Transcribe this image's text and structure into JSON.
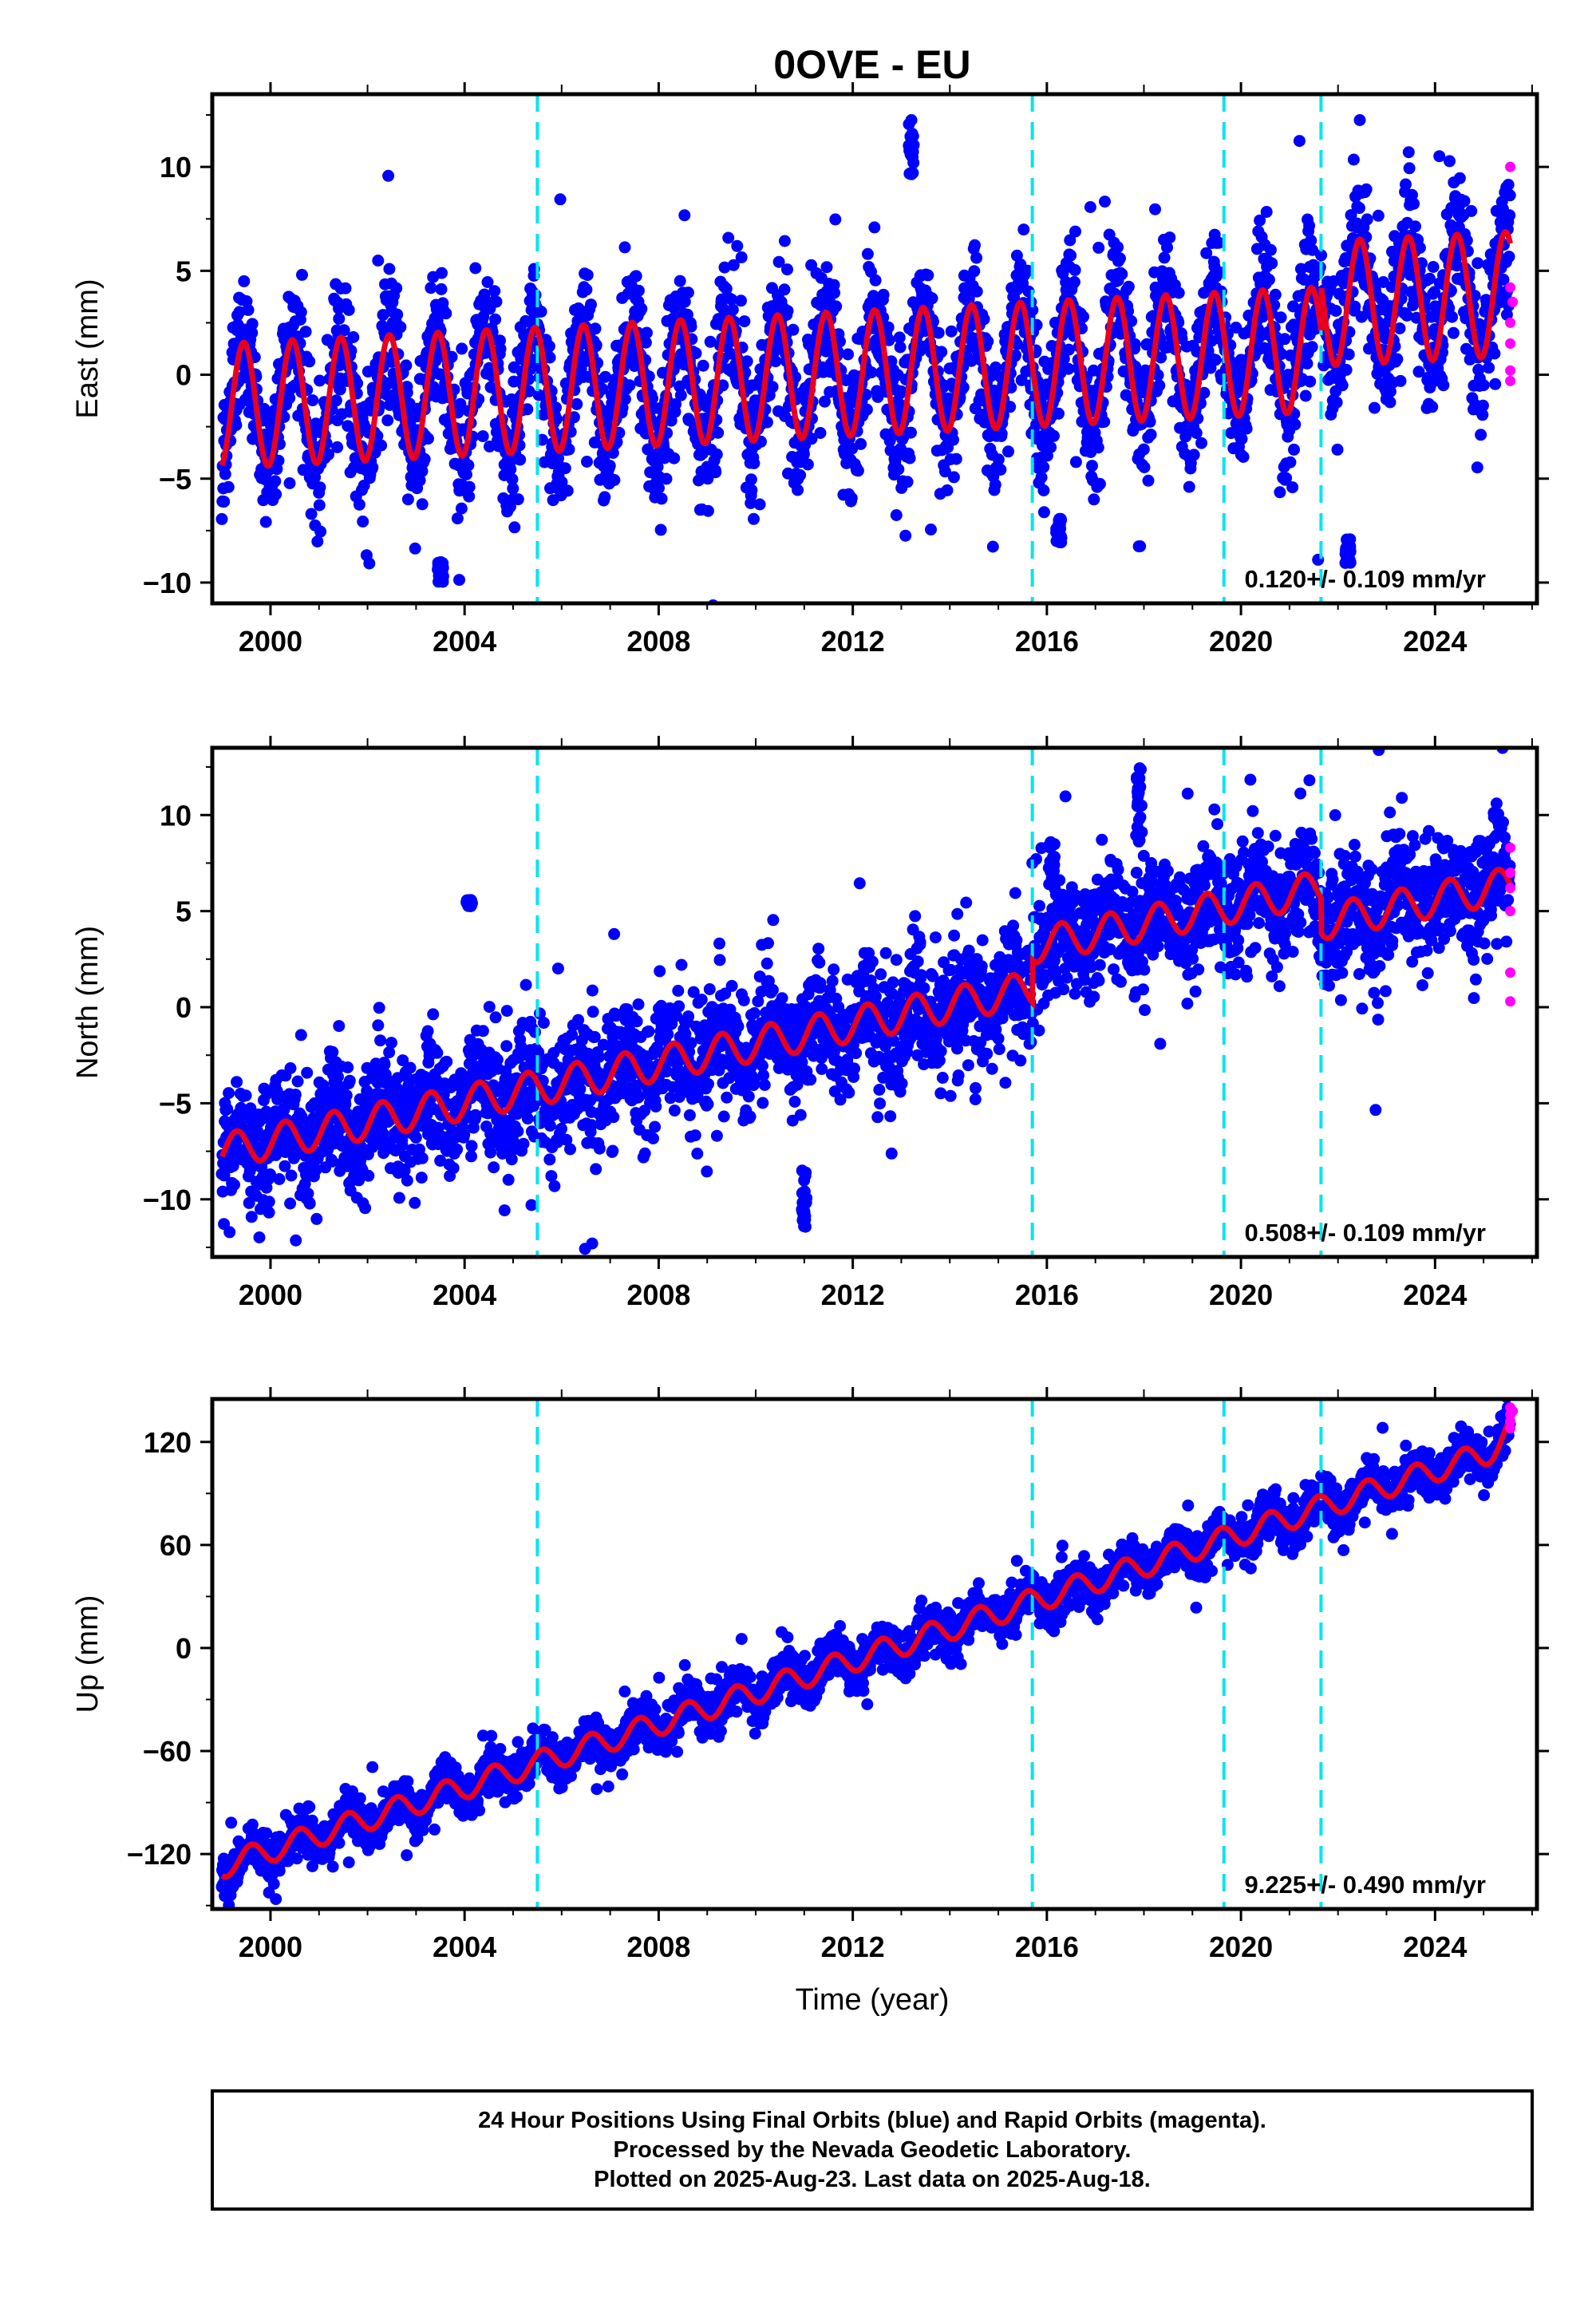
{
  "chart_data": {
    "type": "scatter",
    "title": "0OVE - EU",
    "xlabel": "Time (year)",
    "xlim": [
      1998.8,
      2026.1
    ],
    "xticks": [
      2000,
      2004,
      2008,
      2012,
      2016,
      2020,
      2024
    ],
    "x_tick_labels": [
      "2000",
      "2004",
      "2008",
      "2012",
      "2016",
      "2020",
      "2024"
    ],
    "equipment_change_epochs": [
      2005.5,
      2015.7,
      2019.65,
      2021.65
    ],
    "colors": {
      "final_orbits": "#0000ff",
      "rapid_orbits": "#ff00ff",
      "model_fit": "#e8001e",
      "steps": "#00e5ee"
    },
    "panels": [
      {
        "ylabel": "East (mm)",
        "ylim": [
          -11,
          13.5
        ],
        "yticks": [
          -10,
          -5,
          0,
          5,
          10
        ],
        "y_tick_labels": [
          "−10",
          "−5",
          "0",
          "5",
          "10"
        ],
        "rate_label": "0.120+/- 0.109 mm/yr",
        "model": {
          "t0": 1999.0,
          "offset": -1.5,
          "rate": 0.12,
          "annual_amplitude": 3.0,
          "annual_amplitude_from_2022": 3.0,
          "annual_phase_peak": 0.45,
          "steps": [
            {
              "t": 2021.65,
              "dy": 2.2
            }
          ]
        },
        "scatter_sigma": 1.6,
        "rapid_points": [
          [
            2025.55,
            10.0
          ],
          [
            2025.55,
            4.2
          ],
          [
            2025.55,
            2.5
          ],
          [
            2025.55,
            1.5
          ],
          [
            2025.55,
            0.2
          ],
          [
            2025.55,
            -0.3
          ],
          [
            2025.6,
            3.5
          ]
        ],
        "outlier_clusters": [
          {
            "t": 2013.2,
            "y": 11.0,
            "spread": 1.4
          },
          {
            "t": 2016.25,
            "y": -7.5,
            "spread": 0.6
          },
          {
            "t": 2022.2,
            "y": -8.5,
            "spread": 0.6
          },
          {
            "t": 2003.5,
            "y": -9.5,
            "spread": 0.5
          }
        ]
      },
      {
        "ylabel": "North (mm)",
        "ylim": [
          -13,
          13.5
        ],
        "yticks": [
          -10,
          -5,
          0,
          5,
          10
        ],
        "y_tick_labels": [
          "−10",
          "−5",
          "0",
          "5",
          "10"
        ],
        "rate_label": "0.508+/- 0.109 mm/yr",
        "model": {
          "t0": 1999.0,
          "offset": -7.5,
          "rate": 0.508,
          "annual_amplitude": 0.9,
          "annual_phase_peak": 0.3,
          "steps": [
            {
              "t": 2015.7,
              "dy": 2.2
            },
            {
              "t": 2021.65,
              "dy": -1.8
            }
          ]
        },
        "scatter_sigma": 1.5,
        "rapid_points": [
          [
            2025.55,
            8.3
          ],
          [
            2025.55,
            7.0
          ],
          [
            2025.55,
            6.2
          ],
          [
            2025.55,
            5.0
          ],
          [
            2025.55,
            1.8
          ],
          [
            2025.55,
            0.3
          ]
        ],
        "outlier_clusters": [
          {
            "t": 2011.0,
            "y": -10.0,
            "spread": 1.5
          },
          {
            "t": 2017.9,
            "y": 10.5,
            "spread": 2.0
          },
          {
            "t": 2004.1,
            "y": 5.4,
            "spread": 0.2
          },
          {
            "t": 2016.1,
            "y": 7.5,
            "spread": 1.2
          }
        ]
      },
      {
        "ylabel": "Up (mm)",
        "ylim": [
          -152,
          145
        ],
        "yticks": [
          -120,
          -60,
          0,
          60,
          120
        ],
        "y_tick_labels": [
          "−120",
          "−60",
          "0",
          "60",
          "120"
        ],
        "rate_label": "9.225+/- 0.490 mm/yr",
        "model": {
          "t0": 1999.0,
          "offset": -127,
          "rate": 9.225,
          "annual_amplitude": 7.0,
          "annual_phase_peak": 0.6,
          "steps": [],
          "late_acceleration": {
            "t": 2025.0,
            "dy_per_yr": 30
          }
        },
        "scatter_sigma": 6.0,
        "rapid_points": [
          [
            2025.55,
            140
          ],
          [
            2025.55,
            136
          ],
          [
            2025.55,
            132
          ],
          [
            2025.55,
            128
          ],
          [
            2025.6,
            138
          ]
        ],
        "outlier_clusters": []
      }
    ],
    "notes": [
      "24 Hour Positions Using Final Orbits (blue) and Rapid Orbits (magenta).",
      "Processed by the Nevada Geodetic Laboratory.",
      "Plotted on 2025-Aug-23. Last data on 2025-Aug-18."
    ]
  }
}
